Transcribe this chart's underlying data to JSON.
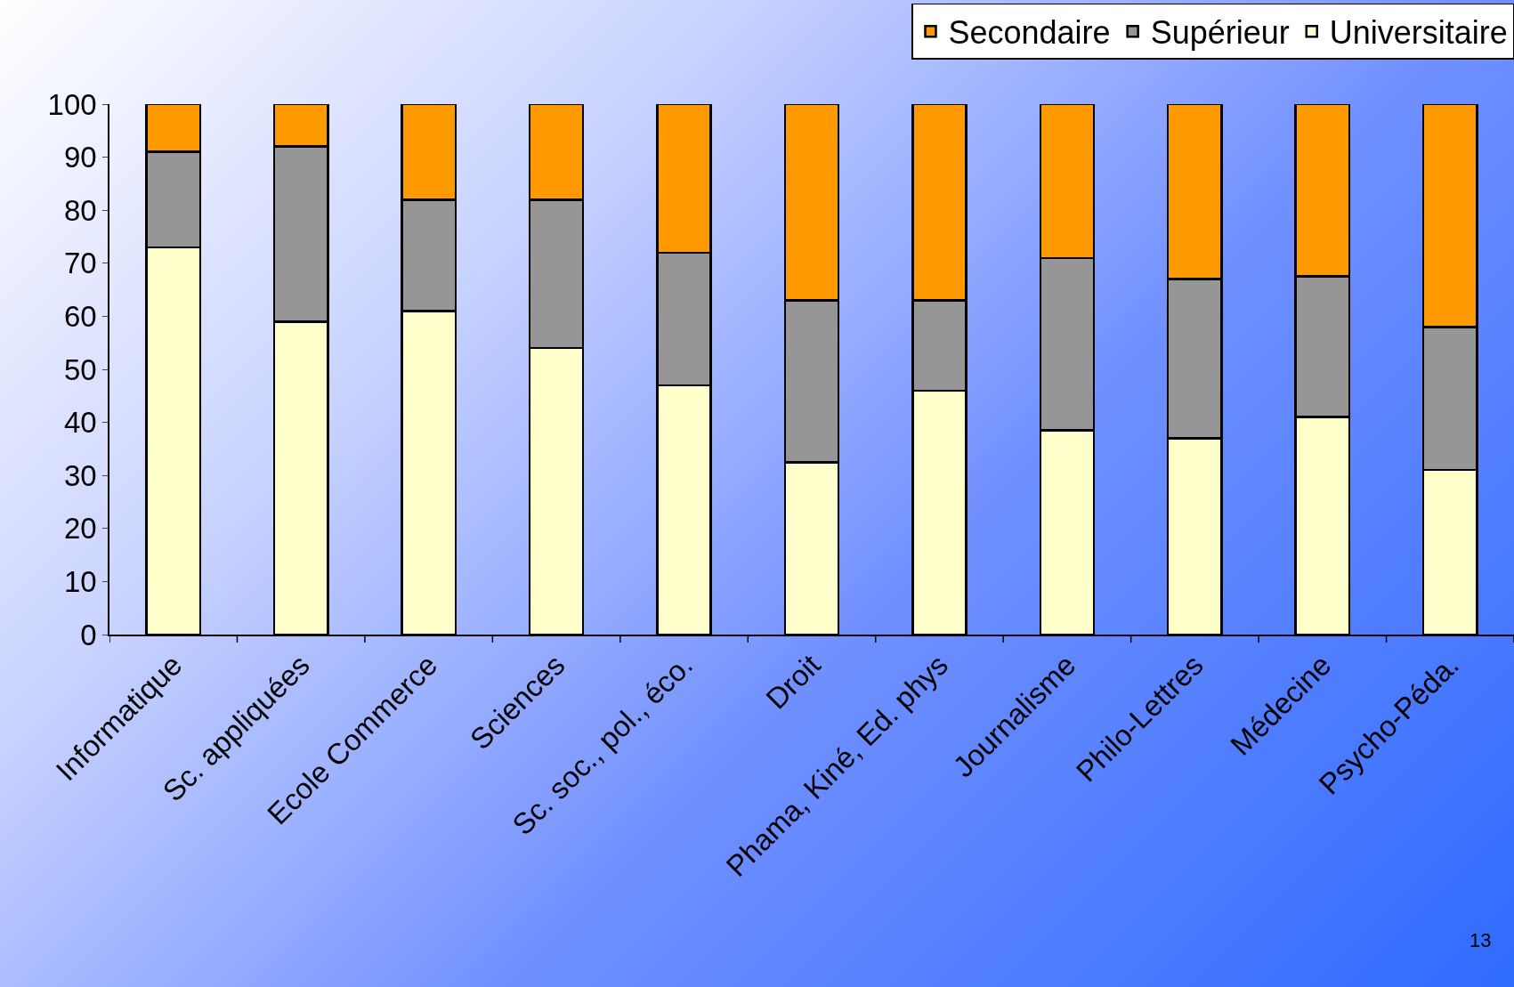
{
  "chart_data": {
    "type": "bar",
    "stacked": true,
    "categories": [
      "Informatique",
      "Sc. appliquées",
      "Ecole Commerce",
      "Sciences",
      "Sc. soc., pol., éco.",
      "Droit",
      "Phama, Kiné, Ed. phys",
      "Journalisme",
      "Philo-Lettres",
      "Médecine",
      "Psycho-Péda."
    ],
    "series": [
      {
        "name": "Universitaire",
        "color": "#ffffcc",
        "values": [
          73,
          59,
          61,
          54,
          47,
          32.5,
          46,
          38.5,
          37,
          41,
          31
        ]
      },
      {
        "name": "Supérieur",
        "color": "#969696",
        "values": [
          18,
          33,
          21,
          28,
          25,
          30.5,
          17,
          32.5,
          30,
          26.5,
          27
        ]
      },
      {
        "name": "Secondaire",
        "color": "#ff9900",
        "values": [
          9,
          8,
          18,
          18,
          28,
          37,
          37,
          29,
          33,
          32.5,
          42
        ]
      }
    ],
    "ylim": [
      0,
      100
    ],
    "yticks": [
      0,
      10,
      20,
      30,
      40,
      50,
      60,
      70,
      80,
      90,
      100
    ],
    "grid": false,
    "legend": "top right",
    "annotations": [
      "13"
    ]
  }
}
